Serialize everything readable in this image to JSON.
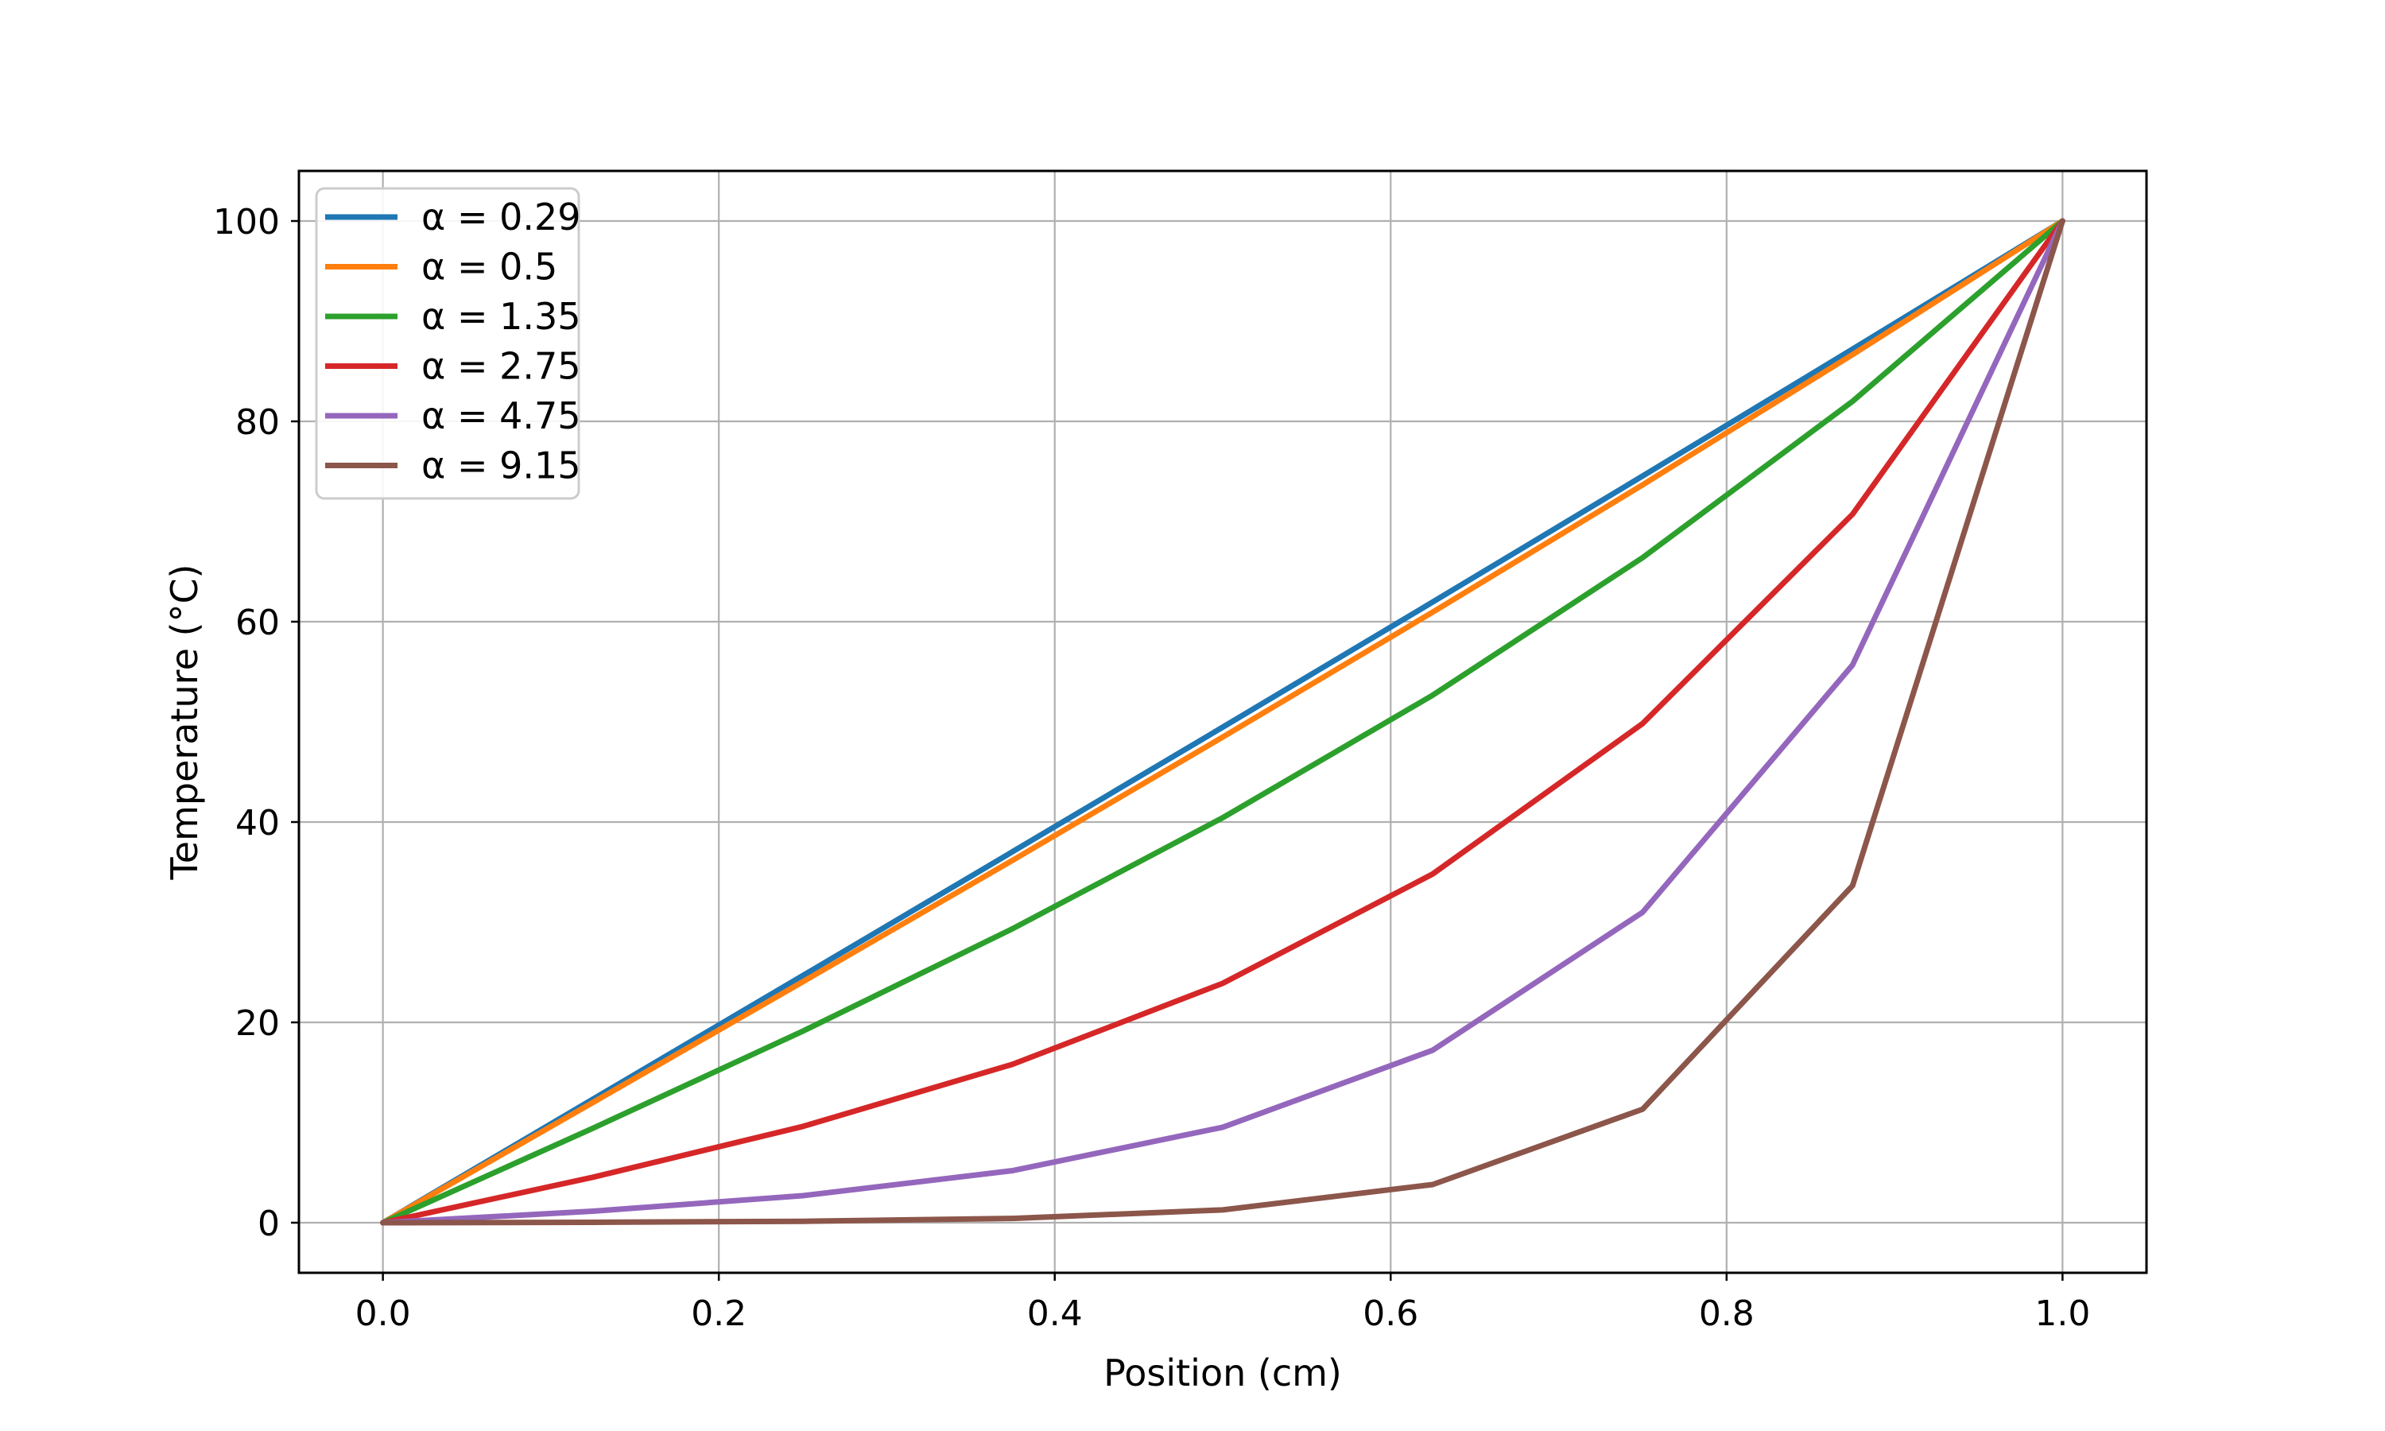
{
  "chart_data": {
    "type": "line",
    "title": "",
    "xlabel": "Position (cm)",
    "ylabel": "Temperature (°C)",
    "x": [
      0.0,
      0.125,
      0.25,
      0.375,
      0.5,
      0.625,
      0.75,
      0.875,
      1.0
    ],
    "series": [
      {
        "name": "alpha-0.29",
        "label": "α = 0.29",
        "color": "#1f77b4",
        "values": [
          0.0,
          12.33,
          24.67,
          37.05,
          49.47,
          61.96,
          74.54,
          87.21,
          100.0
        ]
      },
      {
        "name": "alpha-0.5",
        "label": "α = 0.5",
        "color": "#ff7f0e",
        "values": [
          0.0,
          12.0,
          24.05,
          36.19,
          48.48,
          60.95,
          73.66,
          86.66,
          100.0
        ]
      },
      {
        "name": "alpha-1.35",
        "label": "α = 1.35",
        "color": "#2ca02c",
        "values": [
          0.0,
          9.43,
          19.12,
          29.36,
          40.43,
          52.66,
          66.39,
          82.0,
          100.0
        ]
      },
      {
        "name": "alpha-2.75",
        "label": "α = 2.75",
        "color": "#d62728",
        "values": [
          0.0,
          4.54,
          9.61,
          15.82,
          23.9,
          34.81,
          49.83,
          70.73,
          100.0
        ]
      },
      {
        "name": "alpha-4.75",
        "label": "α = 4.75",
        "color": "#9467bd",
        "values": [
          0.0,
          1.15,
          2.7,
          5.2,
          9.53,
          17.22,
          30.99,
          55.68,
          100.0
        ]
      },
      {
        "name": "alpha-9.15",
        "label": "α = 9.15",
        "color": "#8c564b",
        "values": [
          0.0,
          0.04,
          0.14,
          0.43,
          1.28,
          3.81,
          11.33,
          33.65,
          100.0
        ]
      }
    ],
    "xlim": [
      -0.05,
      1.05
    ],
    "ylim": [
      -5,
      105
    ],
    "xticks": [
      0.0,
      0.2,
      0.4,
      0.6,
      0.8,
      1.0
    ],
    "xtick_labels": [
      "0.0",
      "0.2",
      "0.4",
      "0.6",
      "0.8",
      "1.0"
    ],
    "yticks": [
      0,
      20,
      40,
      60,
      80,
      100
    ],
    "ytick_labels": [
      "0",
      "20",
      "40",
      "60",
      "80",
      "100"
    ],
    "grid": true,
    "grid_color": "#b0b0b0",
    "spine_color": "#000000",
    "legend_position": "upper left",
    "line_width": 7
  }
}
